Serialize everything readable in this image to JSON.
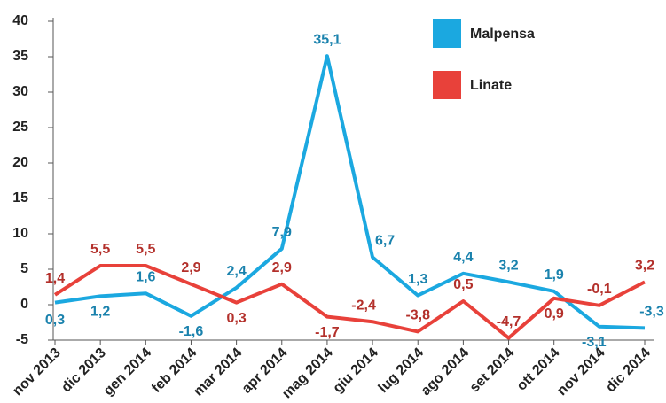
{
  "chart_data": {
    "type": "line",
    "categories": [
      "nov 2013",
      "dic 2013",
      "gen 2014",
      "feb 2014",
      "mar 2014",
      "apr 2014",
      "mag 2014",
      "giu 2014",
      "lug 2014",
      "ago 2014",
      "set 2014",
      "ott 2014",
      "nov 2014",
      "dic 2014"
    ],
    "series": [
      {
        "name": "Malpensa",
        "color": "#1ba8e0",
        "values": [
          0.3,
          1.2,
          1.6,
          -1.6,
          2.4,
          7.9,
          35.1,
          6.7,
          1.3,
          4.4,
          3.2,
          1.9,
          -3.1,
          -3.3
        ],
        "value_labels": [
          "0,3",
          "1,2",
          "1,6",
          "-1,6",
          "2,4",
          "7,9",
          "35,1",
          "6,7",
          "1,3",
          "4,4",
          "3,2",
          "1,9",
          "-3,1",
          "-3,3"
        ]
      },
      {
        "name": "Linate",
        "color": "#e8413a",
        "values": [
          1.4,
          5.5,
          5.5,
          2.9,
          0.3,
          2.9,
          -1.7,
          -2.4,
          -3.8,
          0.5,
          -4.7,
          0.9,
          -0.1,
          3.2
        ],
        "value_labels": [
          "1,4",
          "5,5",
          "5,5",
          "2,9",
          "0,3",
          "2,9",
          "-1,7",
          "-2,4",
          "-3,8",
          "0,5",
          "-4,7",
          "0,9",
          "-0,1",
          "3,2"
        ]
      }
    ],
    "ylim": [
      -5,
      40
    ],
    "yticks": [
      -5,
      0,
      5,
      10,
      15,
      20,
      25,
      30,
      35,
      40
    ],
    "legend": "top-right"
  }
}
